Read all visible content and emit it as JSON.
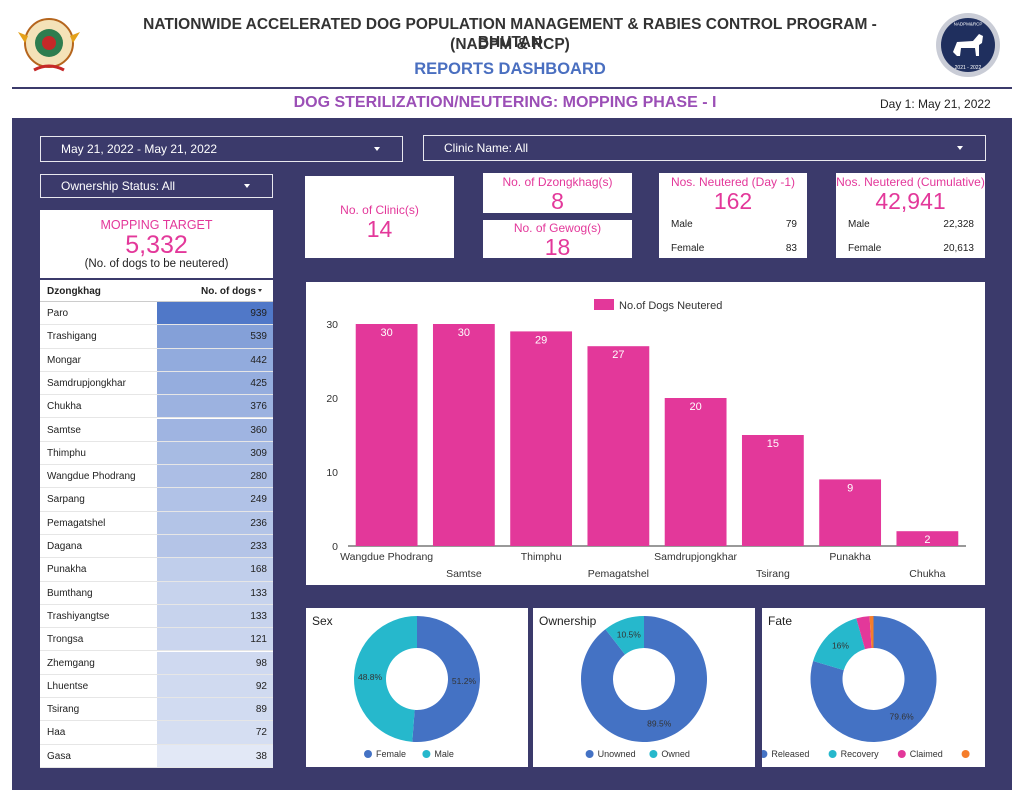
{
  "header": {
    "title_line1": "NATIONWIDE ACCELERATED DOG POPULATION MANAGEMENT & RABIES CONTROL PROGRAM - BHUTAN",
    "title_line2": "(NADPM & RCP)",
    "dashboard": "REPORTS DASHBOARD",
    "badge_top": "NADPM&RCP",
    "badge_years": "2021 - 2022"
  },
  "subtitle": "DOG STERILIZATION/NEUTERING: MOPPING PHASE - I",
  "day_label": "Day 1: May 21, 2022",
  "filters": {
    "date_range": "May 21, 2022 - May 21, 2022",
    "clinic": "Clinic Name: All",
    "ownership": "Ownership Status: All"
  },
  "target": {
    "label": "MOPPING TARGET",
    "value": "5,332",
    "note": "(No. of dogs to be neutered)"
  },
  "kpis": {
    "clinics": {
      "label": "No. of Clinic(s)",
      "value": "14"
    },
    "dzongkhags": {
      "label": "No. of Dzongkhag(s)",
      "value": "8"
    },
    "gewogs": {
      "label": "No. of Gewog(s)",
      "value": "18"
    },
    "day1": {
      "label": "Nos. Neutered (Day -1)",
      "value": "162",
      "male_label": "Male",
      "male": "79",
      "female_label": "Female",
      "female": "83"
    },
    "cumulative": {
      "label": "Nos. Neutered (Cumulative)",
      "value": "42,941",
      "male_label": "Male",
      "male": "22,328",
      "female_label": "Female",
      "female": "20,613"
    }
  },
  "table": {
    "col1": "Dzongkhag",
    "col2": "No. of dogs",
    "rows": [
      {
        "name": "Paro",
        "value": 939
      },
      {
        "name": "Trashigang",
        "value": 539
      },
      {
        "name": "Mongar",
        "value": 442
      },
      {
        "name": "Samdrupjongkhar",
        "value": 425
      },
      {
        "name": "Chukha",
        "value": 376
      },
      {
        "name": "Samtse",
        "value": 360
      },
      {
        "name": "Thimphu",
        "value": 309
      },
      {
        "name": "Wangdue Phodrang",
        "value": 280
      },
      {
        "name": "Sarpang",
        "value": 249
      },
      {
        "name": "Pemagatshel",
        "value": 236
      },
      {
        "name": "Dagana",
        "value": 233
      },
      {
        "name": "Punakha",
        "value": 168
      },
      {
        "name": "Bumthang",
        "value": 133
      },
      {
        "name": "Trashiyangtse",
        "value": 133
      },
      {
        "name": "Trongsa",
        "value": 121
      },
      {
        "name": "Zhemgang",
        "value": 98
      },
      {
        "name": "Lhuentse",
        "value": 92
      },
      {
        "name": "Tsirang",
        "value": 89
      },
      {
        "name": "Haa",
        "value": 72
      },
      {
        "name": "Gasa",
        "value": 38
      }
    ]
  },
  "chart_data": [
    {
      "type": "bar",
      "categories": [
        "Wangdue Phodrang",
        "Samtse",
        "Thimphu",
        "Pemagatshel",
        "Samdrupjongkhar",
        "Tsirang",
        "Punakha",
        "Chukha"
      ],
      "series": [
        {
          "name": "No.of Dogs Neutered",
          "values": [
            30,
            30,
            29,
            27,
            20,
            15,
            9,
            2
          ]
        }
      ],
      "yticks": [
        0,
        10,
        20,
        30
      ],
      "ylim": [
        0,
        30
      ],
      "legend": "top",
      "grid": false,
      "color": "#e3389a"
    },
    {
      "type": "pie",
      "title": "Sex",
      "labels": [
        "Female",
        "Male"
      ],
      "values": [
        51.2,
        48.8
      ],
      "value_labels": [
        "51.2%",
        "48.8%"
      ],
      "colors": [
        "#4472c4",
        "#26b8cc"
      ]
    },
    {
      "type": "pie",
      "title": "Ownership",
      "labels": [
        "Unowned",
        "Owned"
      ],
      "values": [
        89.5,
        10.5
      ],
      "value_labels": [
        "89.5%",
        "10.5%"
      ],
      "colors": [
        "#4472c4",
        "#26b8cc"
      ]
    },
    {
      "type": "pie",
      "title": "Fate",
      "labels": [
        "Released",
        "Recovery",
        "Claimed",
        ""
      ],
      "values": [
        79.6,
        16,
        3.4,
        1
      ],
      "value_labels": [
        "79.6%",
        "16%",
        "",
        ""
      ],
      "colors": [
        "#4472c4",
        "#26b8cc",
        "#e3389a",
        "#f57d2a"
      ]
    }
  ]
}
